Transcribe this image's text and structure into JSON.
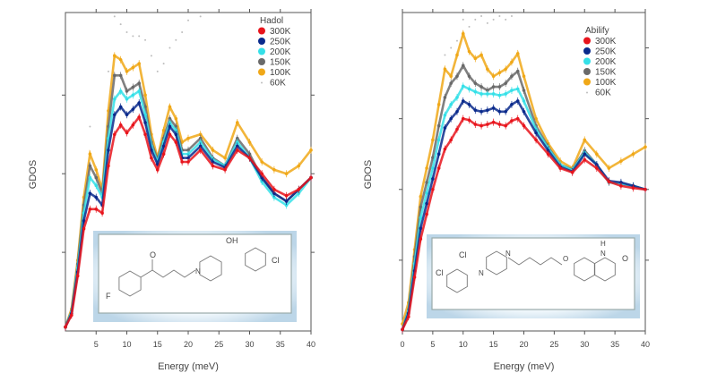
{
  "chart_data": [
    {
      "type": "scatter",
      "title": "",
      "xlabel": "Energy (meV)",
      "ylabel": "GDOS",
      "xlim": [
        0,
        40
      ],
      "ylim": [
        0,
        4.05
      ],
      "xticks": [
        5,
        10,
        15,
        20,
        25,
        30,
        35,
        40
      ],
      "yticks": [
        1,
        2,
        3
      ],
      "ytick_labels_shown": false,
      "grid": false,
      "legend": {
        "title": "Hadol",
        "placement": "top-right"
      },
      "x": [
        0,
        1,
        2,
        3,
        4,
        5,
        6,
        7,
        8,
        9,
        10,
        11,
        12,
        13,
        14,
        15,
        16,
        17,
        18,
        19,
        20,
        22,
        24,
        26,
        28,
        30,
        32,
        34,
        36,
        38,
        40
      ],
      "series": [
        {
          "name": "300K",
          "color": "#e8141c",
          "values": [
            0.05,
            0.2,
            0.7,
            1.3,
            1.55,
            1.55,
            1.5,
            2.1,
            2.5,
            2.62,
            2.52,
            2.62,
            2.72,
            2.5,
            2.2,
            2.05,
            2.25,
            2.5,
            2.4,
            2.15,
            2.15,
            2.3,
            2.1,
            2.05,
            2.3,
            2.2,
            2.0,
            1.8,
            1.72,
            1.8,
            1.95
          ]
        },
        {
          "name": "250K",
          "color": "#0a2a8c",
          "values": [
            0.05,
            0.22,
            0.75,
            1.4,
            1.75,
            1.7,
            1.6,
            2.3,
            2.75,
            2.85,
            2.75,
            2.82,
            2.9,
            2.65,
            2.3,
            2.12,
            2.35,
            2.6,
            2.5,
            2.2,
            2.2,
            2.35,
            2.15,
            2.08,
            2.35,
            2.2,
            1.95,
            1.75,
            1.65,
            1.8,
            1.95
          ]
        },
        {
          "name": "200K",
          "color": "#35e0e8",
          "values": [
            0.05,
            0.24,
            0.8,
            1.5,
            1.95,
            1.85,
            1.7,
            2.45,
            2.95,
            3.05,
            2.95,
            3.0,
            3.05,
            2.75,
            2.35,
            2.15,
            2.4,
            2.65,
            2.55,
            2.25,
            2.25,
            2.4,
            2.18,
            2.1,
            2.4,
            2.2,
            1.9,
            1.7,
            1.6,
            1.75,
            1.95
          ]
        },
        {
          "name": "150K",
          "color": "#6a6a6a",
          "values": [
            0.05,
            0.25,
            0.85,
            1.6,
            2.1,
            1.95,
            1.75,
            2.6,
            3.25,
            3.25,
            3.05,
            3.1,
            3.15,
            2.85,
            2.4,
            2.18,
            2.45,
            2.7,
            2.6,
            2.3,
            2.3,
            2.45,
            2.2,
            2.1,
            2.45,
            2.25,
            1.95,
            1.75,
            1.65,
            1.8,
            1.95
          ]
        },
        {
          "name": "100K",
          "color": "#f0a818",
          "values": [
            0.05,
            0.28,
            0.9,
            1.7,
            2.25,
            2.05,
            1.8,
            2.8,
            3.5,
            3.45,
            3.3,
            3.35,
            3.4,
            3.0,
            2.5,
            2.2,
            2.55,
            2.85,
            2.7,
            2.4,
            2.45,
            2.5,
            2.3,
            2.2,
            2.65,
            2.4,
            2.15,
            2.05,
            2.0,
            2.1,
            2.3
          ]
        },
        {
          "name": "60K",
          "color": "#bdbdbd",
          "values": [
            null,
            null,
            null,
            null,
            2.6,
            null,
            null,
            3.3,
            4.0,
            3.9,
            3.8,
            3.75,
            3.75,
            3.7,
            3.5,
            3.3,
            3.4,
            3.6,
            3.7,
            3.8,
            3.95,
            4.0,
            null,
            null,
            null,
            null,
            null,
            null,
            null,
            null,
            null
          ]
        }
      ],
      "inset": {
        "labels": [
          "O",
          "OH",
          "Cl",
          "N",
          "F"
        ]
      }
    },
    {
      "type": "scatter",
      "title": "",
      "xlabel": "Energy (meV)",
      "ylabel": "GDOS",
      "xlim": [
        0,
        40
      ],
      "ylim": [
        0,
        4.5
      ],
      "xticks": [
        0,
        5,
        10,
        15,
        20,
        25,
        30,
        35,
        40
      ],
      "yticks": [
        1,
        2,
        3,
        4
      ],
      "ytick_labels_shown": false,
      "grid": false,
      "legend": {
        "title": "Abilify",
        "placement": "top-right"
      },
      "x": [
        0,
        1,
        2,
        3,
        4,
        5,
        6,
        7,
        8,
        9,
        10,
        11,
        12,
        13,
        14,
        15,
        16,
        17,
        18,
        19,
        20,
        22,
        24,
        26,
        28,
        30,
        32,
        34,
        36,
        38,
        40
      ],
      "series": [
        {
          "name": "300K",
          "color": "#e8141c",
          "values": [
            0.02,
            0.2,
            0.76,
            1.3,
            1.65,
            2.0,
            2.3,
            2.57,
            2.7,
            2.85,
            3.0,
            2.98,
            2.92,
            2.9,
            2.92,
            2.95,
            2.92,
            2.9,
            2.97,
            3.0,
            2.9,
            2.7,
            2.5,
            2.3,
            2.24,
            2.42,
            2.3,
            2.11,
            2.05,
            2.02,
            2.0
          ]
        },
        {
          "name": "250K",
          "color": "#0a2a8c",
          "values": [
            0.02,
            0.25,
            0.85,
            1.45,
            1.8,
            2.15,
            2.5,
            2.87,
            3.0,
            3.1,
            3.25,
            3.2,
            3.12,
            3.1,
            3.12,
            3.15,
            3.1,
            3.1,
            3.2,
            3.25,
            3.1,
            2.8,
            2.55,
            2.32,
            2.25,
            2.5,
            2.35,
            2.12,
            2.1,
            2.05,
            2.0
          ]
        },
        {
          "name": "200K",
          "color": "#35e0e8",
          "values": [
            0.02,
            0.28,
            0.95,
            1.6,
            1.95,
            2.3,
            2.7,
            3.05,
            3.2,
            3.3,
            3.46,
            3.42,
            3.38,
            3.35,
            3.35,
            3.35,
            3.33,
            3.35,
            3.4,
            3.42,
            3.25,
            2.85,
            2.58,
            2.35,
            2.27,
            2.52,
            2.35,
            2.1,
            2.08,
            2.05,
            2.0
          ]
        },
        {
          "name": "150K",
          "color": "#6a6a6a",
          "values": [
            0.02,
            0.3,
            1.05,
            1.75,
            2.1,
            2.45,
            2.9,
            3.3,
            3.5,
            3.6,
            3.75,
            3.6,
            3.5,
            3.45,
            3.4,
            3.45,
            3.45,
            3.5,
            3.6,
            3.67,
            3.4,
            2.9,
            2.6,
            2.35,
            2.28,
            2.55,
            2.35,
            2.1,
            2.08,
            2.05,
            2.0
          ]
        },
        {
          "name": "100K",
          "color": "#f0a818",
          "values": [
            0.1,
            0.4,
            1.15,
            1.9,
            2.3,
            2.7,
            3.2,
            3.7,
            3.6,
            3.9,
            4.2,
            3.95,
            3.85,
            3.9,
            3.7,
            3.6,
            3.65,
            3.7,
            3.8,
            3.92,
            3.6,
            3.0,
            2.65,
            2.4,
            2.3,
            2.7,
            2.5,
            2.3,
            2.4,
            2.5,
            2.6
          ]
        },
        {
          "name": "60K",
          "color": "#bdbdbd",
          "values": [
            null,
            null,
            null,
            null,
            null,
            null,
            null,
            3.9,
            4.0,
            4.1,
            4.4,
            4.3,
            4.4,
            4.45,
            4.35,
            4.4,
            4.45,
            4.4,
            4.45,
            null,
            null,
            null,
            null,
            null,
            null,
            null,
            null,
            null,
            null,
            null,
            null
          ]
        }
      ],
      "inset": {
        "labels": [
          "Cl",
          "Cl",
          "N",
          "N",
          "O",
          "H",
          "N",
          "O"
        ]
      }
    }
  ]
}
